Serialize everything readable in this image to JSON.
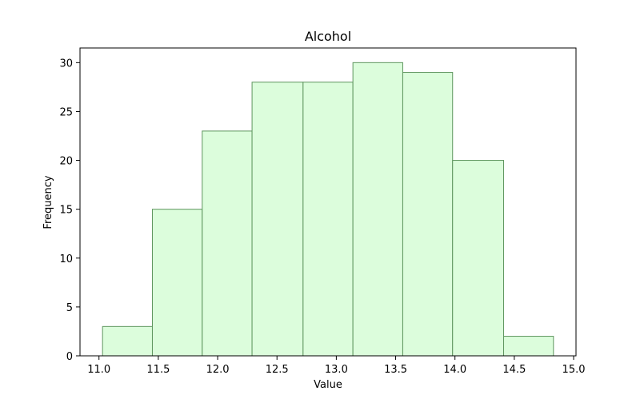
{
  "chart_data": {
    "type": "bar",
    "title": "Alcohol",
    "xlabel": "Value",
    "ylabel": "Frequency",
    "bins": [
      [
        11.03,
        11.45
      ],
      [
        11.45,
        11.87
      ],
      [
        11.87,
        12.29
      ],
      [
        12.29,
        12.72
      ],
      [
        12.72,
        13.14
      ],
      [
        13.14,
        13.56
      ],
      [
        13.56,
        13.98
      ],
      [
        13.98,
        14.41
      ],
      [
        14.41,
        14.83
      ]
    ],
    "values": [
      3,
      15,
      23,
      28,
      28,
      30,
      29,
      20,
      2
    ],
    "xlim": [
      10.84,
      15.02
    ],
    "ylim": [
      0,
      31.5
    ],
    "xticks": [
      "11.0",
      "11.5",
      "12.0",
      "12.5",
      "13.0",
      "13.5",
      "14.0",
      "14.5",
      "15.0"
    ],
    "yticks": [
      "0",
      "5",
      "10",
      "15",
      "20",
      "25",
      "30"
    ],
    "grid": false,
    "colors": {
      "bar_fill": "#dcfddc",
      "bar_edge": "#5e955e",
      "axes": "#000000"
    }
  }
}
